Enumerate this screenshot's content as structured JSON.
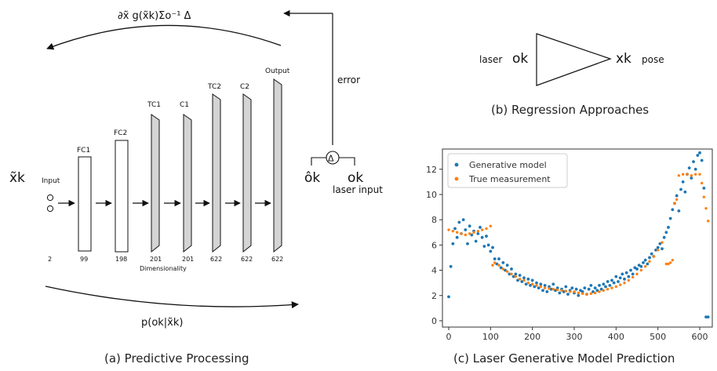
{
  "panel_a": {
    "caption": "(a) Predictive Processing",
    "top_expression": "∂x̃ g(x̃k)Σo⁻¹ Δ",
    "bottom_expression": "p(ok|x̃k)",
    "latent_label": "x̃k",
    "error_label": "error",
    "delta_symbol": "Δ",
    "prediction_label": "ôk",
    "observation_label": "ok",
    "laser_input_label": "laser input",
    "dimensionality_label": "Dimensionality",
    "layers": [
      {
        "name": "Input",
        "dim": "2"
      },
      {
        "name": "FC1",
        "dim": "99"
      },
      {
        "name": "FC2",
        "dim": "198"
      },
      {
        "name": "TC1",
        "dim": "201"
      },
      {
        "name": "C1",
        "dim": "201"
      },
      {
        "name": "TC2",
        "dim": "622"
      },
      {
        "name": "C2",
        "dim": "622"
      },
      {
        "name": "Output",
        "dim": "622"
      }
    ]
  },
  "panel_b": {
    "caption": "(b) Regression Approaches",
    "laser_label": "laser",
    "input_symbol": "ok",
    "output_symbol": "xk",
    "pose_label": "pose"
  },
  "chart_data": {
    "type": "scatter",
    "title": "(c) Laser Generative Model Prediction",
    "xlabel": "",
    "ylabel": "",
    "xlim": [
      -15,
      630
    ],
    "ylim": [
      -0.5,
      13.6
    ],
    "xticks": [
      0,
      100,
      200,
      300,
      400,
      500,
      600
    ],
    "yticks": [
      0,
      2,
      4,
      6,
      8,
      10,
      12
    ],
    "legend_position": "top-left",
    "grid": false,
    "series": [
      {
        "name": "Generative model",
        "color": "#1f77b4",
        "x": [
          0,
          5,
          10,
          15,
          20,
          25,
          30,
          35,
          40,
          45,
          50,
          55,
          60,
          65,
          70,
          75,
          80,
          85,
          90,
          95,
          100,
          105,
          110,
          115,
          120,
          125,
          130,
          135,
          140,
          145,
          150,
          155,
          160,
          165,
          170,
          175,
          180,
          185,
          190,
          195,
          200,
          205,
          210,
          215,
          220,
          225,
          230,
          235,
          240,
          245,
          250,
          255,
          260,
          265,
          270,
          275,
          280,
          285,
          290,
          295,
          300,
          305,
          310,
          315,
          320,
          325,
          330,
          335,
          340,
          345,
          350,
          355,
          360,
          365,
          370,
          375,
          380,
          385,
          390,
          395,
          400,
          405,
          410,
          415,
          420,
          425,
          430,
          435,
          440,
          445,
          450,
          455,
          460,
          465,
          470,
          475,
          480,
          485,
          490,
          495,
          500,
          505,
          510,
          515,
          520,
          525,
          530,
          535,
          540,
          545,
          550,
          555,
          560,
          565,
          570,
          575,
          580,
          585,
          590,
          595,
          600,
          605,
          610,
          615,
          620
        ],
        "y": [
          1.9,
          4.3,
          6.1,
          7.3,
          6.6,
          7.8,
          6.9,
          8.0,
          7.2,
          6.1,
          7.5,
          6.8,
          7.1,
          6.3,
          6.9,
          7.4,
          6.6,
          5.9,
          6.7,
          6.0,
          5.5,
          5.8,
          4.9,
          4.5,
          4.9,
          4.2,
          4.6,
          4.0,
          4.4,
          3.7,
          4.1,
          3.5,
          3.7,
          3.2,
          3.6,
          3.1,
          3.4,
          2.9,
          3.3,
          2.8,
          3.2,
          2.7,
          3.0,
          2.6,
          2.9,
          2.4,
          2.8,
          2.3,
          2.7,
          2.5,
          2.9,
          2.4,
          2.6,
          2.2,
          2.5,
          2.3,
          2.7,
          2.1,
          2.4,
          2.6,
          2.2,
          2.5,
          2.0,
          2.4,
          2.3,
          2.6,
          2.1,
          2.5,
          2.8,
          2.3,
          2.6,
          2.4,
          2.8,
          2.5,
          2.9,
          2.7,
          3.1,
          2.8,
          3.2,
          3.0,
          3.5,
          3.1,
          3.4,
          3.7,
          3.3,
          3.8,
          3.5,
          4.0,
          3.7,
          4.2,
          4.1,
          4.4,
          4.3,
          4.6,
          4.8,
          4.5,
          5.0,
          5.3,
          5.1,
          5.6,
          5.8,
          6.1,
          5.7,
          6.6,
          7.0,
          7.4,
          8.1,
          8.8,
          9.3,
          9.9,
          8.7,
          10.4,
          11.0,
          10.2,
          11.6,
          12.1,
          11.3,
          12.6,
          12.0,
          13.1,
          13.3,
          12.7,
          10.5,
          0.3,
          0.3
        ]
      },
      {
        "name": "True measurement",
        "color": "#ff7f0e",
        "x": [
          0,
          10,
          20,
          30,
          40,
          50,
          60,
          70,
          80,
          90,
          100,
          105,
          110,
          120,
          130,
          140,
          150,
          160,
          170,
          180,
          190,
          200,
          210,
          220,
          230,
          240,
          250,
          260,
          270,
          280,
          290,
          300,
          310,
          320,
          330,
          340,
          350,
          360,
          370,
          380,
          390,
          400,
          410,
          420,
          430,
          440,
          450,
          460,
          470,
          480,
          490,
          500,
          510,
          520,
          525,
          530,
          535,
          540,
          545,
          550,
          560,
          570,
          580,
          590,
          600,
          605,
          610,
          615,
          620
        ],
        "y": [
          7.2,
          7.1,
          7.0,
          6.9,
          6.8,
          6.9,
          7.0,
          7.1,
          7.2,
          7.3,
          7.5,
          4.4,
          4.6,
          4.4,
          4.1,
          3.9,
          3.7,
          3.5,
          3.3,
          3.2,
          3.0,
          2.9,
          2.8,
          2.7,
          2.6,
          2.55,
          2.5,
          2.45,
          2.4,
          2.35,
          2.3,
          2.3,
          2.2,
          2.15,
          2.1,
          2.15,
          2.2,
          2.3,
          2.4,
          2.5,
          2.6,
          2.7,
          2.85,
          3.0,
          3.2,
          3.45,
          3.7,
          4.0,
          4.3,
          4.7,
          5.1,
          5.6,
          6.2,
          4.5,
          4.5,
          4.6,
          4.8,
          9.3,
          9.6,
          11.5,
          11.6,
          11.6,
          11.5,
          11.6,
          11.6,
          10.9,
          9.8,
          8.9,
          7.9
        ]
      }
    ]
  }
}
